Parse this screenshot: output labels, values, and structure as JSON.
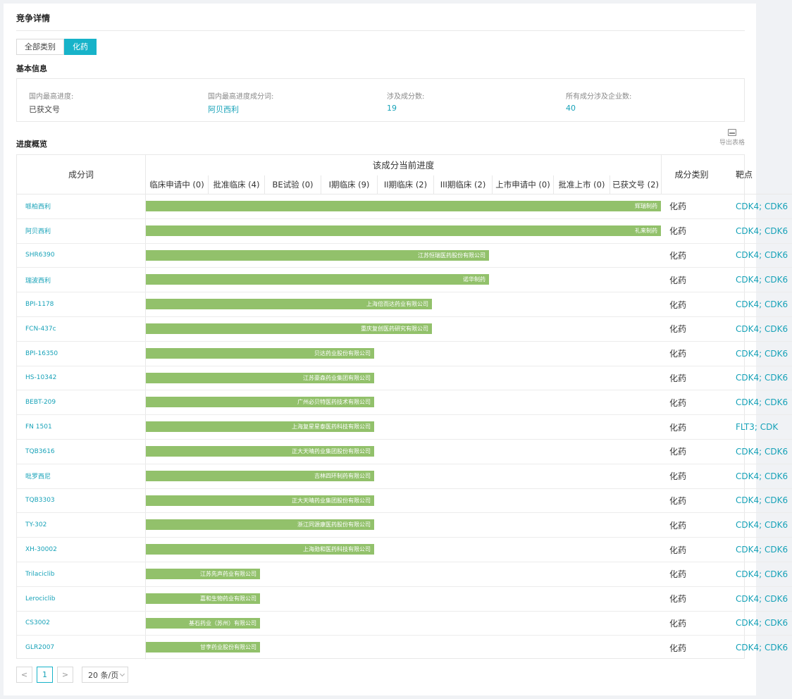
{
  "panel": {
    "title": "竞争详情"
  },
  "tabs": [
    {
      "label": "全部类别",
      "active": false
    },
    {
      "label": "化药",
      "active": true
    }
  ],
  "basic_info": {
    "label": "基本信息",
    "fields": [
      {
        "key": "国内最高进度:",
        "value": "已获文号",
        "link": false
      },
      {
        "key": "国内最高进度成分词:",
        "value": "阿贝西利",
        "link": true
      },
      {
        "key": "涉及成分数:",
        "value": "19",
        "link": true
      },
      {
        "key": "所有成分涉及企业数:",
        "value": "40",
        "link": true
      }
    ]
  },
  "progress": {
    "label": "进度概览",
    "export_label": "导出表格"
  },
  "table": {
    "col_name": "成分词",
    "col_progress_group": "该成分当前进度",
    "stages": [
      "临床申请中 (0)",
      "批准临床 (4)",
      "BE试验 (0)",
      "I期临床 (9)",
      "II期临床 (2)",
      "III期临床 (2)",
      "上市申请中 (0)",
      "批准上市 (0)",
      "已获文号 (2)"
    ],
    "col_type": "成分类别",
    "col_target": "靶点",
    "rows": [
      {
        "name": "哌柏西利",
        "stage": 9,
        "company": "辉瑞制药",
        "type": "化药",
        "target": "CDK4; CDK6"
      },
      {
        "name": "阿贝西利",
        "stage": 9,
        "company": "礼来制药",
        "type": "化药",
        "target": "CDK4; CDK6"
      },
      {
        "name": "SHR6390",
        "stage": 6,
        "company": "江苏恒瑞医药股份有限公司",
        "type": "化药",
        "target": "CDK4; CDK6"
      },
      {
        "name": "瑞波西利",
        "stage": 6,
        "company": "诺华制药",
        "type": "化药",
        "target": "CDK4; CDK6"
      },
      {
        "name": "BPI-1178",
        "stage": 5,
        "company": "上海倍而达药业有限公司",
        "type": "化药",
        "target": "CDK4; CDK6"
      },
      {
        "name": "FCN-437c",
        "stage": 5,
        "company": "重庆复创医药研究有限公司",
        "type": "化药",
        "target": "CDK4; CDK6"
      },
      {
        "name": "BPI-16350",
        "stage": 4,
        "company": "贝达药业股份有限公司",
        "type": "化药",
        "target": "CDK4; CDK6"
      },
      {
        "name": "HS-10342",
        "stage": 4,
        "company": "江苏豪森药业集团有限公司",
        "type": "化药",
        "target": "CDK4; CDK6"
      },
      {
        "name": "BEBT-209",
        "stage": 4,
        "company": "广州必贝特医药技术有限公司",
        "type": "化药",
        "target": "CDK4; CDK6"
      },
      {
        "name": "FN 1501",
        "stage": 4,
        "company": "上海复星星泰医药科技有限公司",
        "type": "化药",
        "target": "FLT3; CDK"
      },
      {
        "name": "TQB3616",
        "stage": 4,
        "company": "正大天晴药业集团股份有限公司",
        "type": "化药",
        "target": "CDK4; CDK6"
      },
      {
        "name": "吡罗西尼",
        "stage": 4,
        "company": "吉林四环制药有限公司",
        "type": "化药",
        "target": "CDK4; CDK6"
      },
      {
        "name": "TQB3303",
        "stage": 4,
        "company": "正大天晴药业集团股份有限公司",
        "type": "化药",
        "target": "CDK4; CDK6"
      },
      {
        "name": "TY-302",
        "stage": 4,
        "company": "浙江同源康医药股份有限公司",
        "type": "化药",
        "target": "CDK4; CDK6"
      },
      {
        "name": "XH-30002",
        "stage": 4,
        "company": "上海勋和医药科技有限公司",
        "type": "化药",
        "target": "CDK4; CDK6"
      },
      {
        "name": "Trilaciclib",
        "stage": 2,
        "company": "江苏先声药业有限公司",
        "type": "化药",
        "target": "CDK4; CDK6"
      },
      {
        "name": "Lerociclib",
        "stage": 2,
        "company": "嘉和生物药业有限公司",
        "type": "化药",
        "target": "CDK4; CDK6"
      },
      {
        "name": "CS3002",
        "stage": 2,
        "company": "基石药业（苏州）有限公司",
        "type": "化药",
        "target": "CDK4; CDK6"
      },
      {
        "name": "GLR2007",
        "stage": 2,
        "company": "甘李药业股份有限公司",
        "type": "化药",
        "target": "CDK4; CDK6"
      }
    ]
  },
  "pagination": {
    "prev": "<",
    "current_page": "1",
    "next": ">",
    "page_size": "20 条/页"
  }
}
